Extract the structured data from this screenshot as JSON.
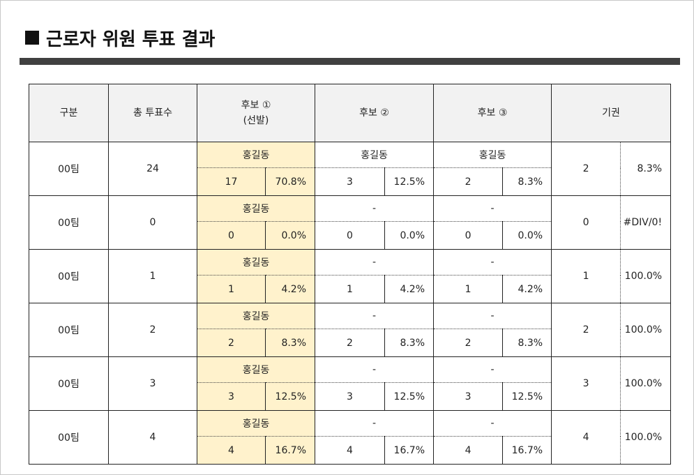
{
  "header": {
    "title": "근로자 위원 투표 결과"
  },
  "table": {
    "headers": [
      "구분",
      "총 투표수",
      "후보 ①",
      "후보 ②",
      "후보 ③",
      "기권"
    ],
    "header_note": "(선발)",
    "rows": [
      {
        "team": "00팀",
        "total": 24,
        "candidates": [
          {
            "name": "홍길동",
            "votes": 17,
            "pct": "70.8%"
          },
          {
            "name": "홍길동",
            "votes": 3,
            "pct": "12.5%"
          },
          {
            "name": "홍길동",
            "votes": 2,
            "pct": "8.3%"
          }
        ],
        "abstain": {
          "votes": 2,
          "pct": "8.3%"
        }
      },
      {
        "team": "00팀",
        "total": 0,
        "candidates": [
          {
            "name": "홍길동",
            "votes": 0,
            "pct": "0.0%"
          },
          {
            "name": "-",
            "votes": 0,
            "pct": "0.0%"
          },
          {
            "name": "-",
            "votes": 0,
            "pct": "0.0%"
          }
        ],
        "abstain": {
          "votes": 0,
          "pct": "#DIV/0!"
        }
      },
      {
        "team": "00팀",
        "total": 1,
        "candidates": [
          {
            "name": "홍길동",
            "votes": 1,
            "pct": "4.2%"
          },
          {
            "name": "-",
            "votes": 1,
            "pct": "4.2%"
          },
          {
            "name": "-",
            "votes": 1,
            "pct": "4.2%"
          }
        ],
        "abstain": {
          "votes": 1,
          "pct": "100.0%"
        }
      },
      {
        "team": "00팀",
        "total": 2,
        "candidates": [
          {
            "name": "홍길동",
            "votes": 2,
            "pct": "8.3%"
          },
          {
            "name": "-",
            "votes": 2,
            "pct": "8.3%"
          },
          {
            "name": "-",
            "votes": 2,
            "pct": "8.3%"
          }
        ],
        "abstain": {
          "votes": 2,
          "pct": "100.0%"
        }
      },
      {
        "team": "00팀",
        "total": 3,
        "candidates": [
          {
            "name": "홍길동",
            "votes": 3,
            "pct": "12.5%"
          },
          {
            "name": "-",
            "votes": 3,
            "pct": "12.5%"
          },
          {
            "name": "-",
            "votes": 3,
            "pct": "12.5%"
          }
        ],
        "abstain": {
          "votes": 3,
          "pct": "100.0%"
        }
      },
      {
        "team": "00팀",
        "total": 4,
        "candidates": [
          {
            "name": "홍길동",
            "votes": 4,
            "pct": "16.7%"
          },
          {
            "name": "-",
            "votes": 4,
            "pct": "16.7%"
          },
          {
            "name": "-",
            "votes": 4,
            "pct": "16.7%"
          }
        ],
        "abstain": {
          "votes": 4,
          "pct": "100.0%"
        }
      }
    ]
  }
}
